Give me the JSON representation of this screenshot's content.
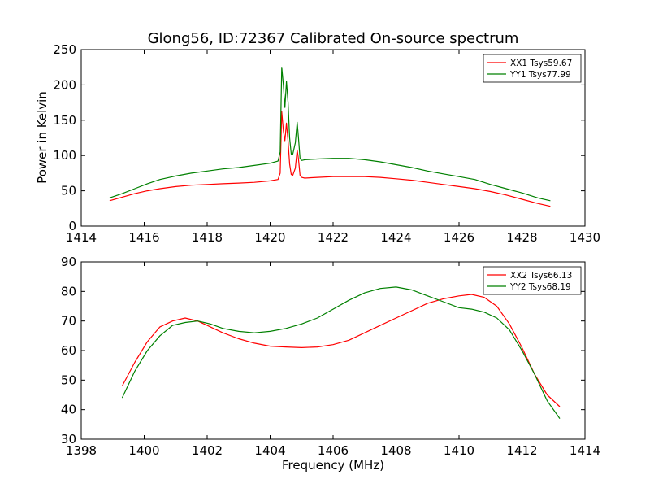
{
  "figure": {
    "title": "Glong56, ID:72367 Calibrated On-source spectrum",
    "ylabel": "Power in Kelvin",
    "xlabel": "Frequency (MHz)"
  },
  "chart_data": [
    {
      "type": "line",
      "title": "Glong56, ID:72367 Calibrated On-source spectrum",
      "xlabel": "",
      "ylabel": "Power in Kelvin",
      "xlim": [
        1414,
        1430
      ],
      "ylim": [
        0,
        250
      ],
      "xticks": [
        1414,
        1416,
        1418,
        1420,
        1422,
        1424,
        1426,
        1428,
        1430
      ],
      "yticks": [
        0,
        50,
        100,
        150,
        200,
        250
      ],
      "grid": false,
      "legend": "top-right",
      "series": [
        {
          "name": "XX1 Tsys59.67",
          "color": "#ff0000",
          "x": [
            1414.9,
            1415.3,
            1415.7,
            1416.1,
            1416.5,
            1417.0,
            1417.5,
            1418.0,
            1418.5,
            1419.0,
            1419.5,
            1420.0,
            1420.25,
            1420.32,
            1420.37,
            1420.42,
            1420.47,
            1420.52,
            1420.57,
            1420.62,
            1420.67,
            1420.72,
            1420.8,
            1420.86,
            1420.9,
            1420.95,
            1421.0,
            1421.1,
            1421.5,
            1422.0,
            1422.5,
            1423.0,
            1423.5,
            1424.0,
            1424.5,
            1425.0,
            1425.5,
            1426.0,
            1426.5,
            1427.0,
            1427.5,
            1428.0,
            1428.5,
            1428.9
          ],
          "y": [
            36,
            41,
            46,
            50,
            53,
            56,
            58,
            59,
            60,
            61,
            62,
            64,
            66,
            75,
            162,
            135,
            121,
            146,
            120,
            88,
            73,
            72,
            82,
            108,
            95,
            72,
            69,
            68,
            69,
            70,
            70,
            70,
            69,
            67,
            65,
            62,
            59,
            56,
            53,
            49,
            44,
            38,
            32,
            28
          ]
        },
        {
          "name": "YY1 Tsys77.99",
          "color": "#008000",
          "x": [
            1414.9,
            1415.3,
            1415.7,
            1416.1,
            1416.5,
            1417.0,
            1417.5,
            1418.0,
            1418.5,
            1419.0,
            1419.5,
            1420.0,
            1420.25,
            1420.32,
            1420.37,
            1420.42,
            1420.47,
            1420.52,
            1420.57,
            1420.62,
            1420.67,
            1420.72,
            1420.8,
            1420.86,
            1420.9,
            1420.95,
            1421.0,
            1421.1,
            1421.5,
            1422.0,
            1422.5,
            1423.0,
            1423.5,
            1424.0,
            1424.5,
            1425.0,
            1425.5,
            1426.0,
            1426.5,
            1427.0,
            1427.5,
            1428.0,
            1428.5,
            1428.9
          ],
          "y": [
            40,
            46,
            53,
            60,
            66,
            71,
            75,
            78,
            81,
            83,
            86,
            89,
            92,
            105,
            225,
            200,
            168,
            205,
            175,
            125,
            102,
            102,
            118,
            147,
            125,
            96,
            93,
            94,
            95,
            96,
            96,
            94,
            91,
            87,
            83,
            78,
            74,
            70,
            66,
            59,
            53,
            47,
            40,
            36
          ]
        }
      ]
    },
    {
      "type": "line",
      "title": "",
      "xlabel": "Frequency (MHz)",
      "ylabel": "",
      "xlim": [
        1398,
        1414
      ],
      "ylim": [
        30,
        90
      ],
      "xticks": [
        1398,
        1400,
        1402,
        1404,
        1406,
        1408,
        1410,
        1412,
        1414
      ],
      "yticks": [
        30,
        40,
        50,
        60,
        70,
        80,
        90
      ],
      "grid": false,
      "legend": "top-right",
      "series": [
        {
          "name": "XX2 Tsys66.13",
          "color": "#ff0000",
          "x": [
            1399.3,
            1399.7,
            1400.1,
            1400.5,
            1400.9,
            1401.3,
            1401.7,
            1402.1,
            1402.5,
            1403.0,
            1403.5,
            1404.0,
            1404.5,
            1405.0,
            1405.5,
            1406.0,
            1406.5,
            1407.0,
            1407.5,
            1408.0,
            1408.5,
            1409.0,
            1409.5,
            1410.0,
            1410.4,
            1410.8,
            1411.2,
            1411.6,
            1412.0,
            1412.4,
            1412.8,
            1413.2
          ],
          "y": [
            48,
            56,
            63,
            68,
            70,
            71,
            70,
            68,
            66,
            64,
            62.5,
            61.5,
            61.2,
            61,
            61.2,
            62,
            63.5,
            66,
            68.5,
            71,
            73.5,
            76,
            77.5,
            78.5,
            79,
            78,
            75,
            69,
            61,
            52,
            45,
            41
          ]
        },
        {
          "name": "YY2 Tsys68.19",
          "color": "#008000",
          "x": [
            1399.3,
            1399.7,
            1400.1,
            1400.5,
            1400.9,
            1401.3,
            1401.7,
            1402.1,
            1402.5,
            1403.0,
            1403.5,
            1404.0,
            1404.5,
            1405.0,
            1405.5,
            1406.0,
            1406.5,
            1407.0,
            1407.5,
            1408.0,
            1408.5,
            1409.0,
            1409.5,
            1410.0,
            1410.4,
            1410.8,
            1411.2,
            1411.6,
            1412.0,
            1412.4,
            1412.8,
            1413.2
          ],
          "y": [
            44,
            53,
            60,
            65,
            68.5,
            69.5,
            70,
            69,
            67.5,
            66.5,
            66,
            66.5,
            67.5,
            69,
            71,
            74,
            77,
            79.5,
            81,
            81.5,
            80.5,
            78.5,
            76.5,
            74.5,
            74,
            73,
            71,
            67,
            60,
            52,
            43,
            37
          ]
        }
      ]
    }
  ]
}
